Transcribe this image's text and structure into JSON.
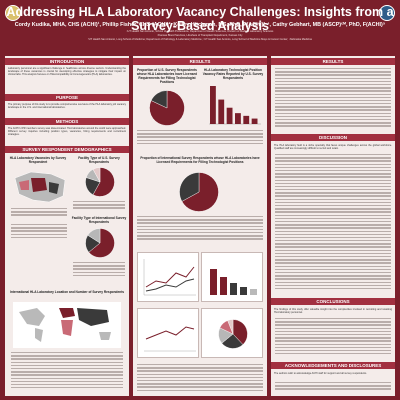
{
  "header": {
    "title": "Addressing HLA Laboratory Vacancy Challenges: Insights from a Survey-Based Analysis",
    "authors": "Cordy Kudika, MHA, CHS (ACHI)¹, Phillip Fisher, CHS (ACHI)², Kelley Hitchman, MS, PhD, F(ACHI)³·⁴, Cathy Gebhart, MB (ASCP)ᶜᴹ, PhD, F(ACHI)⁵",
    "affiliations": [
      "¹UT Health San Antonio, School of Health Professions, Department of Health Sciences, Division of Medical Laboratory Sciences",
      "²Kansas Blood Services, Lifeshare of Transplant Department, Kansas City",
      "³UT Health San Antonio, Long School of Medicine; Department of Pathology & Laboratory Medicine; ⁴UT Health San Antonio, Long School of Medicine Mays & Cancer Center; ⁵Nebraska Medicine"
    ]
  },
  "sections": {
    "introduction": "INTRODUCTION",
    "purpose": "PURPOSE",
    "methods": "METHODS",
    "results_col1": "SURVEY RESPONDENT DEMOGRAPHICS",
    "results": "RESULTS",
    "results_col3": "RESULTS",
    "discussion": "DISCUSSION",
    "conclusions": "CONCLUSIONS",
    "acknowledgements": "ACKNOWLEDGEMENTS AND DISCLOSURES"
  },
  "text": {
    "introduction": "Laboratory personnel are a significant challenge in healthcare across diverse sectors. Understanding the landscape of these vacancies is crucial for developing effective strategies to mitigate their impact on clinical labs. This analysis focuses on Histocompatibility & Immunogenetics (HLA) laboratories.",
    "purpose": "The primary purpose of this study is to provide comprehensive overview of the HLA laboratory job vacancy landscape in the U.S. and international laboratories.",
    "methods": "The ACHI's IPR members survey was disseminated. HLA laboratories around the world were approached. Different survey inquiries including position types, vacancies, hiring requirements and recruitment strategies.",
    "discussion": "The HLA laboratory field is a niche specialty that faces unique challenges across the global workforce. Qualified staff are increasingly difficult to recruit and retain.",
    "conclusions": "The findings of this study offer valuable insight into the complexities involved in recruiting and retaining HLA laboratory personnel.",
    "acknowledgements": "The authors wish to acknowledge ACHI staff for support and all survey respondents."
  },
  "charts": {
    "c1_title": "HLA Laboratory Vacancies by Survey Respondent",
    "c2_title": "Facility Type of U.S. Survey Respondents",
    "c3_title": "Facility Type of International Survey Respondents",
    "c4_title": "International HLA Laboratory Location and Number of Survey Respondents",
    "c5_title": "Proportion of U.S. Survey Respondents whose HLA Laboratories have Licensed Requirements for Filling Technologist Positions",
    "c6_title": "HLA Laboratory Technologist Position Vacancy Rates Reported by U.S. Survey Respondents",
    "c7_title": "Proportion of International Survey Respondents whose HLA Laboratories have Licensed Requirements for Filling Technologist Positions",
    "c8_title": "Percent of International Survey Respondents by Region"
  },
  "chart_data": [
    {
      "type": "pie",
      "title": "Facility Type of U.S. Survey Respondents",
      "values": [
        58,
        22,
        12,
        8
      ],
      "colors": [
        "#7a1f2b",
        "#3a3a3a",
        "#b7b7b7",
        "#e3c9c9"
      ]
    },
    {
      "type": "pie",
      "title": "Facility Type of International Survey Respondents",
      "values": [
        64,
        20,
        16
      ],
      "colors": [
        "#7a1f2b",
        "#3a3a3a",
        "#b7b7b7"
      ]
    },
    {
      "type": "pie",
      "title": "Proportion of U.S. Survey Respondents whose HLA Laboratories have Licensed Requirements for Filling Technologist Positions",
      "values": [
        82,
        18
      ],
      "colors": [
        "#7a1f2b",
        "#3a3a3a"
      ]
    },
    {
      "type": "pie",
      "title": "Proportion of International Survey Respondents whose HLA Laboratories have Licensed Requirements for Filling Technologist Positions",
      "values": [
        67,
        33
      ],
      "colors": [
        "#7a1f2b",
        "#3a3a3a"
      ]
    },
    {
      "type": "bar",
      "title": "HLA Laboratory Technologist Position Vacancy Rates Reported by U.S. Survey Respondents",
      "values": [
        14,
        9,
        6,
        4,
        3,
        2
      ],
      "color": "#7a1f2b"
    },
    {
      "type": "pie",
      "title": "Percent of International Survey Respondents by Region",
      "values": [
        38,
        26,
        18,
        12,
        6
      ],
      "colors": [
        "#7a1f2b",
        "#3a3a3a",
        "#b7b7b7",
        "#c96a76",
        "#e3c9c9"
      ]
    }
  ]
}
